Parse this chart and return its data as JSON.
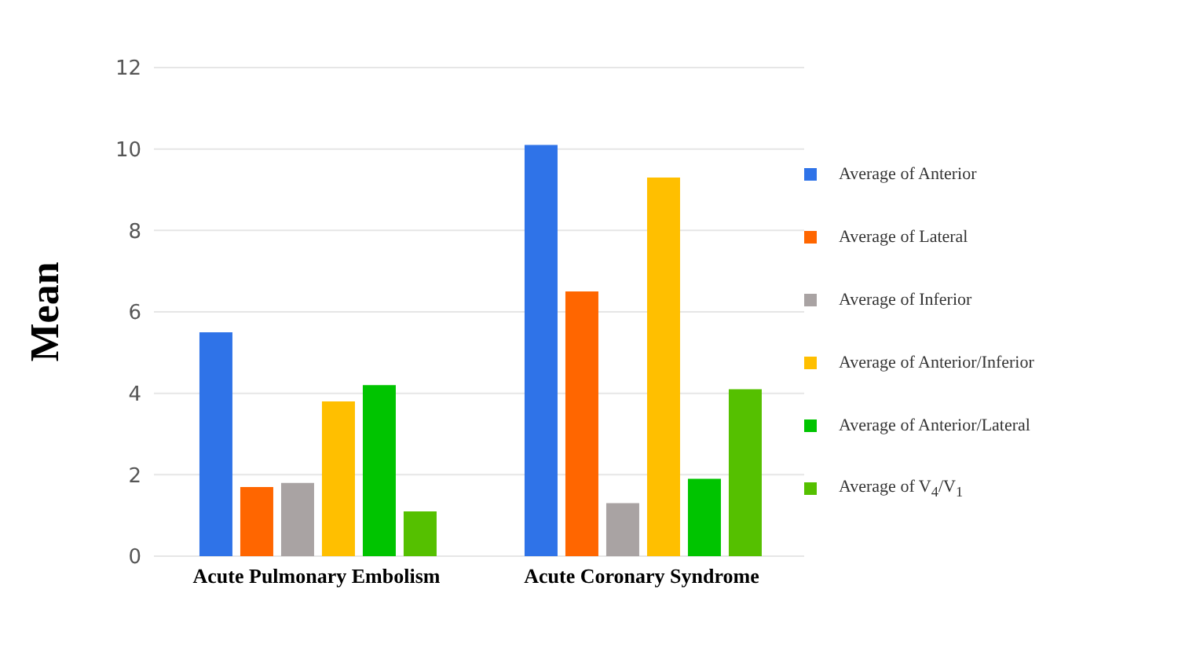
{
  "chart_data": {
    "type": "bar",
    "ylabel": "Mean",
    "categories": [
      "Acute Pulmonary Embolism",
      "Acute Coronary Syndrome"
    ],
    "series": [
      {
        "name": "Average of Anterior",
        "color": "#2f73e8",
        "values": [
          5.5,
          10.1
        ]
      },
      {
        "name": "Average of Lateral",
        "color": "#ff6600",
        "values": [
          1.7,
          6.5
        ]
      },
      {
        "name": "Average of Inferior",
        "color": "#a9a3a3",
        "values": [
          1.8,
          1.3
        ]
      },
      {
        "name": "Average of Anterior/Inferior",
        "color": "#ffbf00",
        "values": [
          3.8,
          9.3
        ]
      },
      {
        "name": "Average of Anterior/Lateral",
        "color": "#00c400",
        "values": [
          4.2,
          1.9
        ]
      },
      {
        "name": "Average of V$_{4}$/V$_{1}$",
        "color": "#55c000",
        "values": [
          1.1,
          4.1
        ]
      }
    ],
    "ylim": [
      0,
      12
    ],
    "yticks": [
      0,
      2,
      4,
      6,
      8,
      10,
      12
    ],
    "grid": "y",
    "legend": "right"
  }
}
